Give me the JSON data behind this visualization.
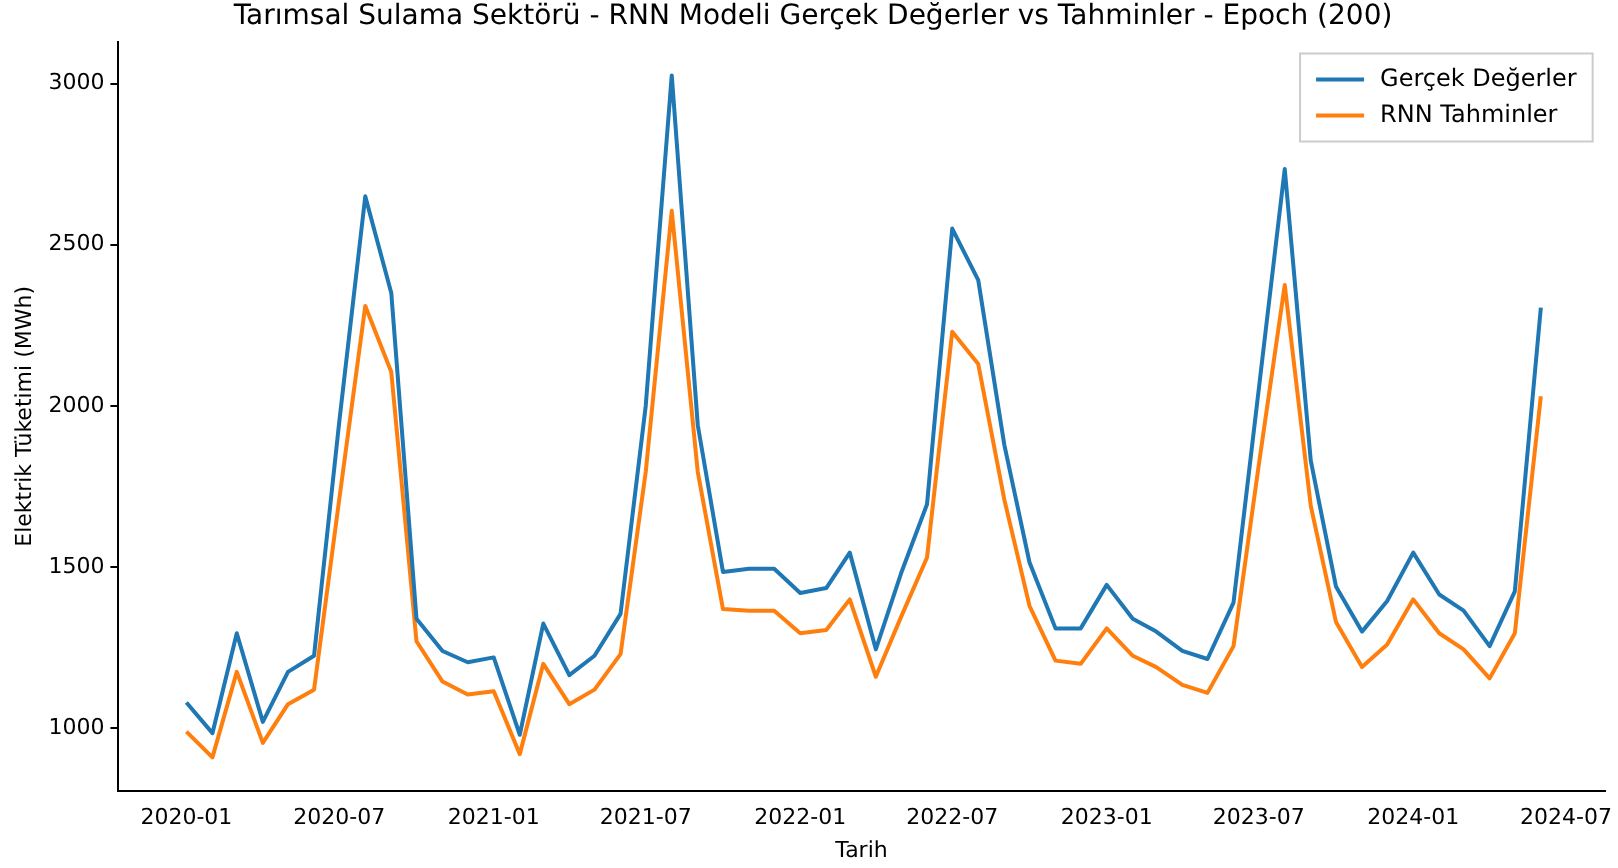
{
  "chart_data": {
    "type": "line",
    "title": "Tarımsal Sulama Sektörü - RNN Modeli Gerçek Değerler vs Tahminler - Epoch (200)",
    "xlabel": "Tarih",
    "ylabel": "Elektrik Tüketimi (MWh)",
    "x": [
      "2020-01",
      "2020-02",
      "2020-03",
      "2020-04",
      "2020-05",
      "2020-06",
      "2020-07",
      "2020-08",
      "2020-09",
      "2020-10",
      "2020-11",
      "2020-12",
      "2021-01",
      "2021-02",
      "2021-03",
      "2021-04",
      "2021-05",
      "2021-06",
      "2021-07",
      "2021-08",
      "2021-09",
      "2021-10",
      "2021-11",
      "2021-12",
      "2022-01",
      "2022-02",
      "2022-03",
      "2022-04",
      "2022-05",
      "2022-06",
      "2022-07",
      "2022-08",
      "2022-09",
      "2022-10",
      "2022-11",
      "2022-12",
      "2023-01",
      "2023-02",
      "2023-03",
      "2023-04",
      "2023-05",
      "2023-06",
      "2023-07",
      "2023-08",
      "2023-09",
      "2023-10",
      "2023-11",
      "2023-12",
      "2024-01",
      "2024-02",
      "2024-03",
      "2024-04",
      "2024-05",
      "2024-06"
    ],
    "series": [
      {
        "name": "Gerçek Değerler",
        "color": "#1f77b4",
        "values": [
          1080,
          985,
          1295,
          1020,
          1175,
          1225,
          1950,
          2650,
          2350,
          1340,
          1240,
          1205,
          1220,
          980,
          1325,
          1165,
          1225,
          1355,
          2000,
          3025,
          1940,
          1485,
          1495,
          1495,
          1420,
          1435,
          1545,
          1245,
          1480,
          1695,
          2550,
          2390,
          1880,
          1515,
          1310,
          1310,
          1445,
          1340,
          1300,
          1240,
          1215,
          1390,
          2050,
          2735,
          1830,
          1440,
          1300,
          1395,
          1545,
          1415,
          1365,
          1255,
          1425,
          2305
        ]
      },
      {
        "name": "RNN Tahminler",
        "color": "#ff7f0e",
        "values": [
          990,
          910,
          1175,
          955,
          1075,
          1120,
          1710,
          2310,
          2105,
          1270,
          1145,
          1105,
          1115,
          920,
          1200,
          1075,
          1120,
          1230,
          1795,
          2605,
          1795,
          1370,
          1365,
          1365,
          1295,
          1305,
          1400,
          1160,
          1345,
          1530,
          2230,
          2130,
          1710,
          1380,
          1210,
          1200,
          1310,
          1225,
          1190,
          1135,
          1110,
          1255,
          1815,
          2375,
          1690,
          1330,
          1190,
          1260,
          1400,
          1295,
          1245,
          1155,
          1295,
          2030
        ]
      }
    ],
    "xlim": [
      "2019-10-12",
      "2024-08-16"
    ],
    "xticks": [
      "2020-01",
      "2020-07",
      "2021-01",
      "2021-07",
      "2022-01",
      "2022-07",
      "2023-01",
      "2023-07",
      "2024-01",
      "2024-07"
    ],
    "ylim": [
      805,
      3130
    ],
    "yticks": [
      1000,
      1500,
      2000,
      2500,
      3000
    ],
    "grid": false,
    "legend": "top right",
    "marker": "none",
    "line_style": "solid"
  }
}
